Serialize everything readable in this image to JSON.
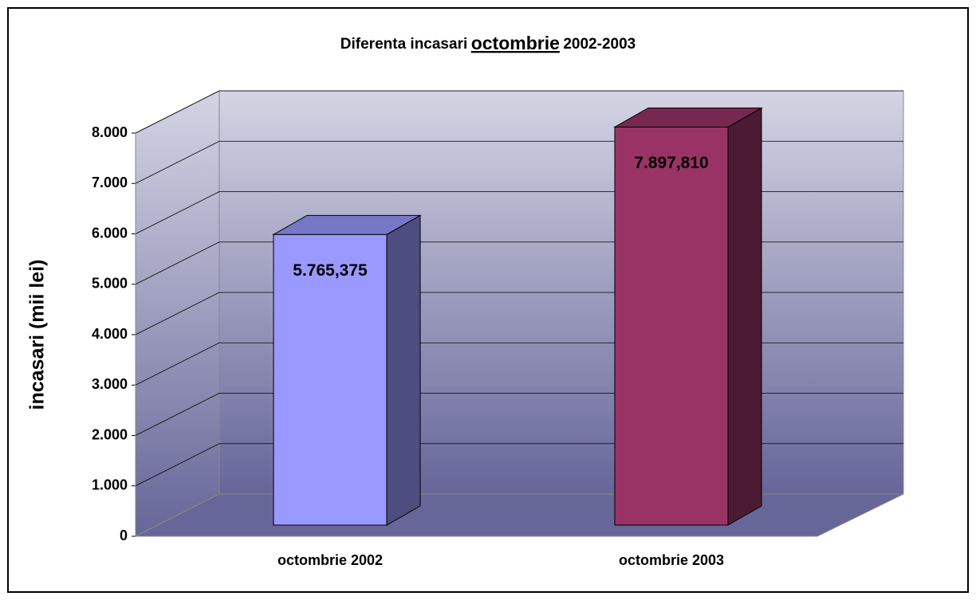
{
  "chart_data": {
    "type": "bar3d",
    "title": [
      "Diferenta incasari",
      "octombrie",
      "2002-2003"
    ],
    "ylabel": "incasari (mii lei)",
    "categories": [
      "octombrie 2002",
      "octombrie 2003"
    ],
    "values": [
      5765.375,
      7897.81
    ],
    "value_labels": [
      "5.765,375",
      "7.897,810"
    ],
    "colors": [
      "#9999ff",
      "#993366"
    ],
    "ylim": [
      0,
      8000
    ],
    "yticks": [
      0,
      {
        "value": 1000,
        "label": "1.000"
      },
      {
        "value": 2000,
        "label": "2.000"
      },
      {
        "value": 3000,
        "label": "3.000"
      },
      {
        "value": 4000,
        "label": "4.000"
      },
      {
        "value": 5000,
        "label": "5.000"
      },
      {
        "value": 6000,
        "label": "6.000"
      },
      {
        "value": 7000,
        "label": "7.000"
      },
      {
        "value": 8000,
        "label": "8.000"
      }
    ],
    "grid": true
  }
}
